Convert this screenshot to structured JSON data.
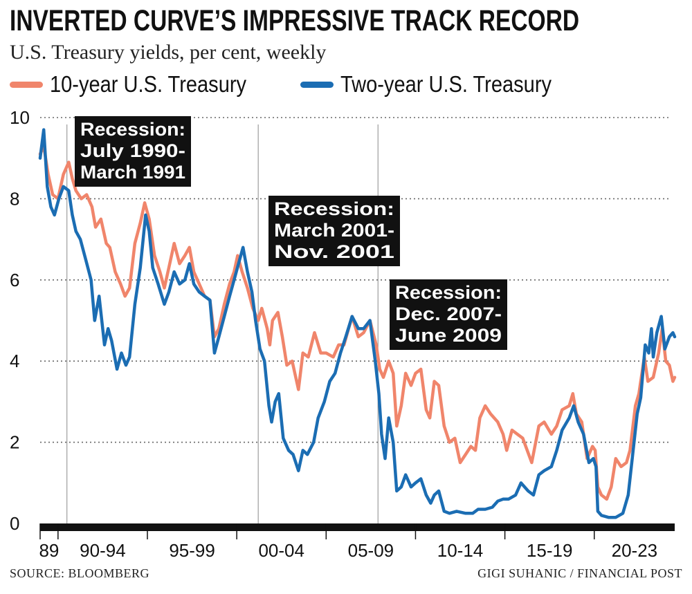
{
  "header": {
    "title": "INVERTED CURVE’S IMPRESSIVE TRACK RECORD",
    "subtitle": "U.S. Treasury yields, per cent, weekly"
  },
  "footer": {
    "source": "SOURCE: BLOOMBERG",
    "credit": "GIGI SUHANIC / FINANCIAL POST"
  },
  "chart_data": {
    "type": "line",
    "ylim": [
      0,
      10
    ],
    "xlim": [
      1989.0,
      2024.5
    ],
    "y_ticks": [
      {
        "value": 0,
        "label": "0"
      },
      {
        "value": 2,
        "label": "2"
      },
      {
        "value": 4,
        "label": "4"
      },
      {
        "value": 6,
        "label": "6"
      },
      {
        "value": 8,
        "label": "8"
      },
      {
        "value": 10,
        "label": "10"
      }
    ],
    "grid": "horizontal dotted",
    "legend_position": "top",
    "x_groups": [
      {
        "label": "89",
        "start": 1989,
        "end": 1990
      },
      {
        "label": "90-94",
        "start": 1990,
        "end": 1995
      },
      {
        "label": "95-99",
        "start": 1995,
        "end": 2000
      },
      {
        "label": "00-04",
        "start": 2000,
        "end": 2005
      },
      {
        "label": "05-09",
        "start": 2005,
        "end": 2010
      },
      {
        "label": "10-14",
        "start": 2010,
        "end": 2015
      },
      {
        "label": "15-19",
        "start": 2015,
        "end": 2020
      },
      {
        "label": "20-23",
        "start": 2020,
        "end": 2024.5
      }
    ],
    "annotations": [
      {
        "lines": [
          "Recession:",
          "July 1990-",
          "March 1991"
        ],
        "x": 1990.5
      },
      {
        "lines": [
          "Recession:",
          "March 2001-",
          "Nov. 2001"
        ],
        "x": 2001.2
      },
      {
        "lines": [
          "Recession:",
          "Dec. 2007-",
          "June 2009"
        ],
        "x": 2007.9
      }
    ],
    "series": [
      {
        "name": "10-year U.S. Treasury",
        "color": "#f0856b",
        "points": [
          [
            1989.0,
            9.1
          ],
          [
            1989.2,
            9.3
          ],
          [
            1989.45,
            8.6
          ],
          [
            1989.7,
            8.1
          ],
          [
            1990.0,
            8.0
          ],
          [
            1990.3,
            8.6
          ],
          [
            1990.6,
            8.9
          ],
          [
            1990.8,
            8.5
          ],
          [
            1991.0,
            8.2
          ],
          [
            1991.3,
            8.0
          ],
          [
            1991.6,
            8.1
          ],
          [
            1991.9,
            7.8
          ],
          [
            1992.1,
            7.3
          ],
          [
            1992.4,
            7.5
          ],
          [
            1992.7,
            6.9
          ],
          [
            1992.9,
            6.8
          ],
          [
            1993.2,
            6.2
          ],
          [
            1993.5,
            5.9
          ],
          [
            1993.75,
            5.6
          ],
          [
            1994.0,
            5.8
          ],
          [
            1994.3,
            6.9
          ],
          [
            1994.6,
            7.4
          ],
          [
            1994.85,
            7.9
          ],
          [
            1995.1,
            7.5
          ],
          [
            1995.4,
            6.6
          ],
          [
            1995.7,
            6.2
          ],
          [
            1995.95,
            5.8
          ],
          [
            1996.2,
            6.3
          ],
          [
            1996.5,
            6.9
          ],
          [
            1996.8,
            6.4
          ],
          [
            1997.1,
            6.6
          ],
          [
            1997.35,
            6.8
          ],
          [
            1997.6,
            6.2
          ],
          [
            1997.9,
            5.9
          ],
          [
            1998.2,
            5.6
          ],
          [
            1998.5,
            5.5
          ],
          [
            1998.75,
            4.6
          ],
          [
            1999.0,
            4.8
          ],
          [
            1999.3,
            5.4
          ],
          [
            1999.6,
            5.9
          ],
          [
            1999.85,
            6.2
          ],
          [
            2000.05,
            6.6
          ],
          [
            2000.3,
            6.2
          ],
          [
            2000.6,
            5.8
          ],
          [
            2000.9,
            5.3
          ],
          [
            2001.2,
            5.0
          ],
          [
            2001.4,
            5.3
          ],
          [
            2001.7,
            4.8
          ],
          [
            2001.85,
            4.4
          ],
          [
            2002.0,
            5.0
          ],
          [
            2002.3,
            5.2
          ],
          [
            2002.55,
            4.6
          ],
          [
            2002.8,
            3.9
          ],
          [
            2003.1,
            4.0
          ],
          [
            2003.45,
            3.3
          ],
          [
            2003.7,
            4.2
          ],
          [
            2004.0,
            4.1
          ],
          [
            2004.35,
            4.7
          ],
          [
            2004.7,
            4.2
          ],
          [
            2005.0,
            4.2
          ],
          [
            2005.4,
            4.1
          ],
          [
            2005.7,
            4.4
          ],
          [
            2006.0,
            4.4
          ],
          [
            2006.45,
            5.1
          ],
          [
            2006.8,
            4.6
          ],
          [
            2007.1,
            4.7
          ],
          [
            2007.45,
            5.0
          ],
          [
            2007.8,
            4.4
          ],
          [
            2008.0,
            3.8
          ],
          [
            2008.2,
            3.6
          ],
          [
            2008.5,
            4.0
          ],
          [
            2008.75,
            3.7
          ],
          [
            2008.95,
            2.4
          ],
          [
            2009.2,
            2.9
          ],
          [
            2009.45,
            3.7
          ],
          [
            2009.75,
            3.4
          ],
          [
            2010.0,
            3.7
          ],
          [
            2010.3,
            3.8
          ],
          [
            2010.6,
            2.8
          ],
          [
            2010.8,
            2.6
          ],
          [
            2011.05,
            3.5
          ],
          [
            2011.3,
            3.4
          ],
          [
            2011.6,
            2.4
          ],
          [
            2011.9,
            2.0
          ],
          [
            2012.2,
            2.1
          ],
          [
            2012.5,
            1.5
          ],
          [
            2012.8,
            1.7
          ],
          [
            2013.1,
            1.9
          ],
          [
            2013.35,
            1.8
          ],
          [
            2013.6,
            2.6
          ],
          [
            2013.9,
            2.9
          ],
          [
            2014.2,
            2.7
          ],
          [
            2014.6,
            2.5
          ],
          [
            2014.9,
            2.2
          ],
          [
            2015.1,
            1.8
          ],
          [
            2015.4,
            2.3
          ],
          [
            2015.7,
            2.2
          ],
          [
            2016.0,
            2.1
          ],
          [
            2016.5,
            1.5
          ],
          [
            2016.9,
            2.4
          ],
          [
            2017.2,
            2.5
          ],
          [
            2017.6,
            2.2
          ],
          [
            2017.9,
            2.4
          ],
          [
            2018.2,
            2.8
          ],
          [
            2018.6,
            2.9
          ],
          [
            2018.8,
            3.2
          ],
          [
            2019.0,
            2.7
          ],
          [
            2019.3,
            2.5
          ],
          [
            2019.6,
            1.6
          ],
          [
            2019.9,
            1.9
          ],
          [
            2020.05,
            1.8
          ],
          [
            2020.2,
            0.9
          ],
          [
            2020.4,
            0.7
          ],
          [
            2020.7,
            0.6
          ],
          [
            2020.95,
            0.9
          ],
          [
            2021.2,
            1.6
          ],
          [
            2021.5,
            1.4
          ],
          [
            2021.8,
            1.5
          ],
          [
            2022.0,
            1.8
          ],
          [
            2022.3,
            2.9
          ],
          [
            2022.5,
            3.2
          ],
          [
            2022.8,
            4.1
          ],
          [
            2023.0,
            3.5
          ],
          [
            2023.3,
            3.6
          ],
          [
            2023.6,
            4.2
          ],
          [
            2023.8,
            4.8
          ],
          [
            2024.0,
            4.0
          ],
          [
            2024.2,
            3.9
          ],
          [
            2024.4,
            3.5
          ],
          [
            2024.5,
            3.6
          ]
        ]
      },
      {
        "name": "Two-year U.S. Treasury",
        "color": "#1b6db3",
        "points": [
          [
            1989.0,
            9.0
          ],
          [
            1989.2,
            9.7
          ],
          [
            1989.4,
            8.3
          ],
          [
            1989.6,
            7.8
          ],
          [
            1989.8,
            7.6
          ],
          [
            1990.05,
            8.0
          ],
          [
            1990.3,
            8.3
          ],
          [
            1990.6,
            8.2
          ],
          [
            1990.8,
            7.6
          ],
          [
            1991.0,
            7.2
          ],
          [
            1991.25,
            7.0
          ],
          [
            1991.55,
            6.5
          ],
          [
            1991.85,
            6.0
          ],
          [
            1992.05,
            5.0
          ],
          [
            1992.3,
            5.6
          ],
          [
            1992.6,
            4.4
          ],
          [
            1992.8,
            4.8
          ],
          [
            1993.0,
            4.5
          ],
          [
            1993.3,
            3.8
          ],
          [
            1993.55,
            4.2
          ],
          [
            1993.8,
            3.9
          ],
          [
            1994.0,
            4.1
          ],
          [
            1994.3,
            5.4
          ],
          [
            1994.6,
            6.3
          ],
          [
            1994.9,
            7.6
          ],
          [
            1995.1,
            7.2
          ],
          [
            1995.3,
            6.3
          ],
          [
            1995.6,
            5.9
          ],
          [
            1995.95,
            5.4
          ],
          [
            1996.2,
            5.7
          ],
          [
            1996.5,
            6.2
          ],
          [
            1996.8,
            5.9
          ],
          [
            1997.1,
            6.0
          ],
          [
            1997.35,
            6.4
          ],
          [
            1997.6,
            5.9
          ],
          [
            1997.9,
            5.7
          ],
          [
            1998.2,
            5.6
          ],
          [
            1998.5,
            5.5
          ],
          [
            1998.75,
            4.2
          ],
          [
            1999.0,
            4.6
          ],
          [
            1999.3,
            5.1
          ],
          [
            1999.6,
            5.6
          ],
          [
            1999.85,
            6.0
          ],
          [
            2000.1,
            6.4
          ],
          [
            2000.35,
            6.8
          ],
          [
            2000.6,
            6.2
          ],
          [
            2000.85,
            5.7
          ],
          [
            2001.05,
            5.0
          ],
          [
            2001.3,
            4.3
          ],
          [
            2001.55,
            4.0
          ],
          [
            2001.8,
            2.9
          ],
          [
            2001.95,
            2.5
          ],
          [
            2002.15,
            3.0
          ],
          [
            2002.35,
            3.2
          ],
          [
            2002.6,
            2.1
          ],
          [
            2002.9,
            1.8
          ],
          [
            2003.15,
            1.7
          ],
          [
            2003.45,
            1.3
          ],
          [
            2003.7,
            1.8
          ],
          [
            2003.95,
            1.7
          ],
          [
            2004.3,
            2.0
          ],
          [
            2004.55,
            2.6
          ],
          [
            2004.9,
            3.0
          ],
          [
            2005.2,
            3.5
          ],
          [
            2005.5,
            3.7
          ],
          [
            2005.8,
            4.2
          ],
          [
            2006.1,
            4.6
          ],
          [
            2006.45,
            5.1
          ],
          [
            2006.8,
            4.8
          ],
          [
            2007.1,
            4.8
          ],
          [
            2007.45,
            5.0
          ],
          [
            2007.75,
            4.0
          ],
          [
            2007.95,
            3.2
          ],
          [
            2008.1,
            2.2
          ],
          [
            2008.3,
            1.6
          ],
          [
            2008.5,
            2.6
          ],
          [
            2008.75,
            2.0
          ],
          [
            2008.95,
            0.8
          ],
          [
            2009.2,
            0.9
          ],
          [
            2009.45,
            1.2
          ],
          [
            2009.75,
            0.9
          ],
          [
            2010.0,
            1.0
          ],
          [
            2010.3,
            1.1
          ],
          [
            2010.6,
            0.7
          ],
          [
            2010.85,
            0.5
          ],
          [
            2011.05,
            0.7
          ],
          [
            2011.3,
            0.8
          ],
          [
            2011.6,
            0.3
          ],
          [
            2011.9,
            0.25
          ],
          [
            2012.3,
            0.3
          ],
          [
            2012.8,
            0.25
          ],
          [
            2013.2,
            0.25
          ],
          [
            2013.5,
            0.35
          ],
          [
            2013.9,
            0.35
          ],
          [
            2014.3,
            0.4
          ],
          [
            2014.6,
            0.55
          ],
          [
            2014.9,
            0.6
          ],
          [
            2015.2,
            0.6
          ],
          [
            2015.6,
            0.7
          ],
          [
            2015.9,
            1.0
          ],
          [
            2016.3,
            0.8
          ],
          [
            2016.6,
            0.7
          ],
          [
            2016.9,
            1.2
          ],
          [
            2017.2,
            1.3
          ],
          [
            2017.6,
            1.4
          ],
          [
            2017.9,
            1.8
          ],
          [
            2018.2,
            2.3
          ],
          [
            2018.6,
            2.6
          ],
          [
            2018.85,
            2.9
          ],
          [
            2019.1,
            2.5
          ],
          [
            2019.4,
            2.2
          ],
          [
            2019.7,
            1.5
          ],
          [
            2019.95,
            1.6
          ],
          [
            2020.1,
            1.4
          ],
          [
            2020.2,
            0.3
          ],
          [
            2020.4,
            0.2
          ],
          [
            2020.8,
            0.15
          ],
          [
            2021.2,
            0.15
          ],
          [
            2021.6,
            0.25
          ],
          [
            2021.9,
            0.7
          ],
          [
            2022.1,
            1.5
          ],
          [
            2022.4,
            2.7
          ],
          [
            2022.6,
            3.1
          ],
          [
            2022.85,
            4.4
          ],
          [
            2023.05,
            4.2
          ],
          [
            2023.2,
            4.8
          ],
          [
            2023.3,
            4.1
          ],
          [
            2023.5,
            4.7
          ],
          [
            2023.75,
            5.1
          ],
          [
            2023.95,
            4.3
          ],
          [
            2024.2,
            4.6
          ],
          [
            2024.4,
            4.7
          ],
          [
            2024.5,
            4.6
          ]
        ]
      }
    ]
  }
}
